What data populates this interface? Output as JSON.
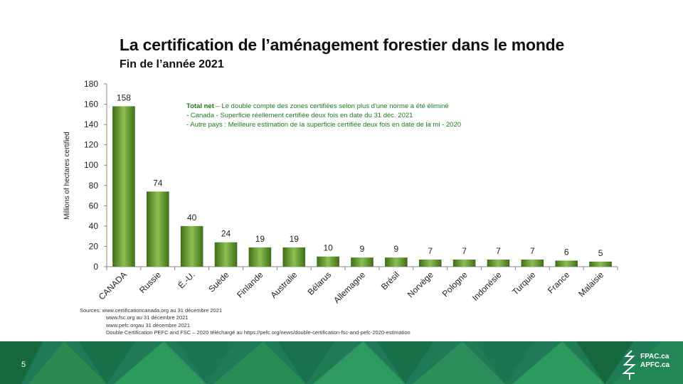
{
  "header": {
    "title": "La certification de l’aménagement forestier dans le monde",
    "subtitle": "Fin de l’année 2021"
  },
  "note": {
    "line1_bold": "Total net",
    "line1_rest": " – Le double compte des zones certifiées selon plus d'une norme a été éliminé",
    "line2": "- Canada - Superficie réellement certifiée deux fois en date du 31 déc. 2021",
    "line3": "- Autre pays : Meilleure estimation de la superficie certifiée deux fois en date de la mi - 2020"
  },
  "sources": {
    "line1": "Sources:   www.certificationcanada.org   au 31 décembre 2021",
    "line2": "www.fsc.org  au 31 décembre 2021",
    "line3": "www.pefc.orgau   31 décembre 2021",
    "line4": "Double Certification  PEFC and  FSC – 2020 téléchargé  au https://pefc.org/news/double-certification-fsc-and-pefc-2020-estimation"
  },
  "footer": {
    "page_number": "5",
    "logo_line1": "FPAC.ca",
    "logo_line2": "APFC.ca"
  },
  "colors": {
    "bar_dark": "#3c6e1a",
    "bar_light": "#8dc050",
    "footer_green": "#1f7a56",
    "note_green": "#1e7a1e"
  },
  "chart_data": {
    "type": "bar",
    "title": "La certification de l’aménagement forestier dans le monde",
    "subtitle": "Fin de l’année 2021",
    "ylabel": "Millions of hectares certified",
    "xlabel": "",
    "ylim": [
      0,
      180
    ],
    "yticks": [
      0,
      20,
      40,
      60,
      80,
      100,
      120,
      140,
      160,
      180
    ],
    "grid": false,
    "legend": "none",
    "categories": [
      "CANADA",
      "Russie",
      "É.-U.",
      "Suède",
      "Finlande",
      "Australie",
      "Bélarus",
      "Allemagne",
      "Brésil",
      "Norvège",
      "Pologne",
      "Indonésie",
      "Turquie",
      "France",
      "Malaisie"
    ],
    "values": [
      158,
      74,
      40,
      24,
      19,
      19,
      10,
      9,
      9,
      7,
      7,
      7,
      7,
      6,
      5
    ]
  }
}
